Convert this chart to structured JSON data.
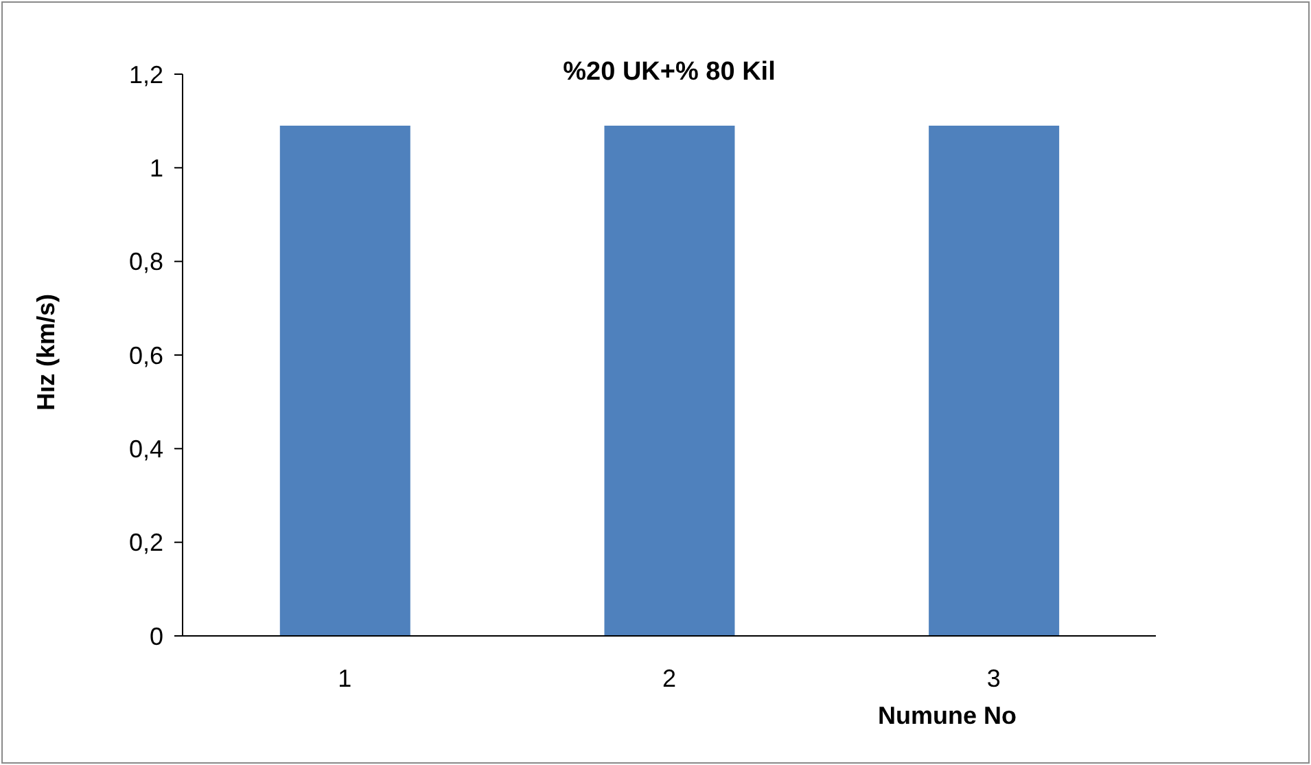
{
  "chart_data": {
    "type": "bar",
    "title": "%20 UK+% 80 Kil",
    "xlabel": "Numune No",
    "ylabel": "Hız (km/s)",
    "categories": [
      "1",
      "2",
      "3"
    ],
    "values": [
      1.09,
      1.09,
      1.09
    ],
    "color": "#4f81bd",
    "ylim": [
      0,
      1.2
    ],
    "yticks": [
      0,
      {
        "value": 0.2,
        "label": "0,2"
      },
      {
        "value": 0.4,
        "label": "0,4"
      },
      {
        "value": 0.6,
        "label": "0,6"
      },
      {
        "value": 0.8,
        "label": "0,8"
      },
      1,
      {
        "value": 1.2,
        "label": "1,2"
      }
    ],
    "grid": false,
    "legend": false
  }
}
